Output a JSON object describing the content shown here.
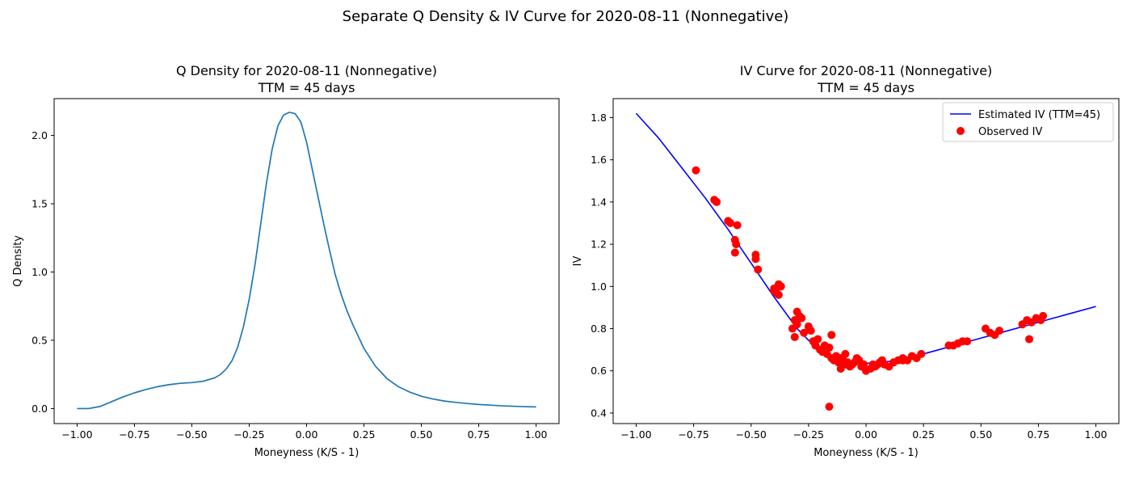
{
  "figure": {
    "suptitle": "Separate Q Density & IV Curve for 2020-08-11 (Nonnegative)"
  },
  "chart_data": [
    {
      "type": "line",
      "title": "Q Density for 2020-08-11 (Nonnegative)",
      "subtitle": "TTM = 45 days",
      "xlabel": "Moneyness (K/S - 1)",
      "ylabel": "Q Density",
      "xlim": [
        -1.1,
        1.1
      ],
      "ylim": [
        -0.11,
        2.27
      ],
      "xticks": [
        -1.0,
        -0.75,
        -0.5,
        -0.25,
        0.0,
        0.25,
        0.5,
        0.75,
        1.0
      ],
      "xtick_labels": [
        "−1.00",
        "−0.75",
        "−0.50",
        "−0.25",
        "0.00",
        "0.25",
        "0.50",
        "0.75",
        "1.00"
      ],
      "yticks": [
        0.0,
        0.5,
        1.0,
        1.5,
        2.0
      ],
      "ytick_labels": [
        "0.0",
        "0.5",
        "1.0",
        "1.5",
        "2.0"
      ],
      "grid": false,
      "series": [
        {
          "color": "#1f77b4",
          "x": [
            -1.0,
            -0.95,
            -0.9,
            -0.85,
            -0.8,
            -0.75,
            -0.7,
            -0.65,
            -0.6,
            -0.55,
            -0.5,
            -0.45,
            -0.4,
            -0.375,
            -0.35,
            -0.325,
            -0.3,
            -0.275,
            -0.25,
            -0.225,
            -0.2,
            -0.175,
            -0.15,
            -0.125,
            -0.1,
            -0.075,
            -0.05,
            -0.025,
            0.0,
            0.025,
            0.05,
            0.075,
            0.1,
            0.125,
            0.15,
            0.175,
            0.2,
            0.25,
            0.3,
            0.35,
            0.4,
            0.45,
            0.5,
            0.55,
            0.6,
            0.65,
            0.7,
            0.75,
            0.8,
            0.85,
            0.9,
            0.95,
            1.0
          ],
          "y": [
            0.0,
            0.0,
            0.015,
            0.05,
            0.085,
            0.115,
            0.14,
            0.16,
            0.175,
            0.185,
            0.19,
            0.2,
            0.225,
            0.25,
            0.29,
            0.35,
            0.45,
            0.6,
            0.8,
            1.05,
            1.35,
            1.65,
            1.9,
            2.07,
            2.15,
            2.17,
            2.16,
            2.1,
            1.95,
            1.75,
            1.55,
            1.35,
            1.16,
            0.98,
            0.84,
            0.72,
            0.62,
            0.44,
            0.31,
            0.22,
            0.16,
            0.12,
            0.09,
            0.07,
            0.055,
            0.045,
            0.037,
            0.03,
            0.025,
            0.02,
            0.017,
            0.014,
            0.012
          ]
        }
      ]
    },
    {
      "type": "line",
      "title": "IV Curve for 2020-08-11 (Nonnegative)",
      "subtitle": "TTM = 45 days",
      "xlabel": "Moneyness (K/S - 1)",
      "ylabel": "IV",
      "xlim": [
        -1.1,
        1.1
      ],
      "ylim": [
        0.35,
        1.89
      ],
      "xticks": [
        -1.0,
        -0.75,
        -0.5,
        -0.25,
        0.0,
        0.25,
        0.5,
        0.75,
        1.0
      ],
      "xtick_labels": [
        "−1.00",
        "−0.75",
        "−0.50",
        "−0.25",
        "0.00",
        "0.25",
        "0.50",
        "0.75",
        "1.00"
      ],
      "yticks": [
        0.4,
        0.6,
        0.8,
        1.0,
        1.2,
        1.4,
        1.6,
        1.8
      ],
      "ytick_labels": [
        "0.4",
        "0.6",
        "0.8",
        "1.0",
        "1.2",
        "1.4",
        "1.6",
        "1.8"
      ],
      "grid": false,
      "legend_position": "top-right",
      "series": [
        {
          "name": "Estimated IV (TTM=45)",
          "kind": "line",
          "color": "#0000ff",
          "x": [
            -1.0,
            -0.9,
            -0.8,
            -0.7,
            -0.6,
            -0.5,
            -0.4,
            -0.3,
            -0.2,
            -0.1,
            0.0,
            0.1,
            0.2,
            0.3,
            0.4,
            0.5,
            0.6,
            0.7,
            0.8,
            0.9,
            1.0
          ],
          "y": [
            1.82,
            1.7,
            1.56,
            1.42,
            1.27,
            1.11,
            0.95,
            0.8,
            0.69,
            0.645,
            0.635,
            0.645,
            0.665,
            0.695,
            0.725,
            0.755,
            0.785,
            0.815,
            0.845,
            0.875,
            0.905
          ]
        },
        {
          "name": "Observed IV",
          "kind": "scatter",
          "color": "#ff0000",
          "x": [
            -0.74,
            -0.66,
            -0.65,
            -0.6,
            -0.59,
            -0.57,
            -0.565,
            -0.57,
            -0.56,
            -0.48,
            -0.48,
            -0.47,
            -0.4,
            -0.39,
            -0.38,
            -0.37,
            -0.38,
            -0.4,
            -0.3,
            -0.29,
            -0.31,
            -0.3,
            -0.28,
            -0.32,
            -0.31,
            -0.27,
            -0.25,
            -0.24,
            -0.23,
            -0.22,
            -0.2,
            -0.19,
            -0.18,
            -0.17,
            -0.16,
            -0.15,
            -0.14,
            -0.13,
            -0.12,
            -0.11,
            -0.1,
            -0.09,
            -0.08,
            -0.07,
            -0.06,
            -0.05,
            -0.04,
            -0.03,
            -0.02,
            -0.01,
            0.0,
            0.02,
            0.04,
            0.06,
            0.08,
            0.1,
            0.12,
            0.14,
            0.16,
            0.18,
            0.2,
            0.22,
            0.24,
            0.16,
            0.03,
            -0.16,
            -0.15,
            0.36,
            0.38,
            0.4,
            0.42,
            0.44,
            0.52,
            0.54,
            0.56,
            0.58,
            0.68,
            0.7,
            0.72,
            0.74,
            0.76,
            0.77,
            0.71,
            -0.21,
            -0.11,
            -0.09,
            0.05,
            0.07
          ],
          "y": [
            1.55,
            1.41,
            1.4,
            1.31,
            1.3,
            1.22,
            1.2,
            1.16,
            1.29,
            1.15,
            1.13,
            1.08,
            0.98,
            0.97,
            1.01,
            1.0,
            0.96,
            0.99,
            0.88,
            0.86,
            0.84,
            0.82,
            0.85,
            0.8,
            0.76,
            0.78,
            0.81,
            0.79,
            0.74,
            0.72,
            0.7,
            0.69,
            0.72,
            0.68,
            0.71,
            0.66,
            0.65,
            0.67,
            0.64,
            0.66,
            0.65,
            0.63,
            0.64,
            0.62,
            0.63,
            0.64,
            0.66,
            0.65,
            0.62,
            0.63,
            0.6,
            0.61,
            0.62,
            0.64,
            0.63,
            0.62,
            0.64,
            0.65,
            0.66,
            0.65,
            0.67,
            0.66,
            0.68,
            0.65,
            0.63,
            0.43,
            0.77,
            0.72,
            0.72,
            0.73,
            0.74,
            0.74,
            0.8,
            0.78,
            0.77,
            0.79,
            0.82,
            0.84,
            0.83,
            0.85,
            0.84,
            0.86,
            0.75,
            0.75,
            0.61,
            0.68,
            0.63,
            0.65
          ]
        }
      ]
    }
  ]
}
